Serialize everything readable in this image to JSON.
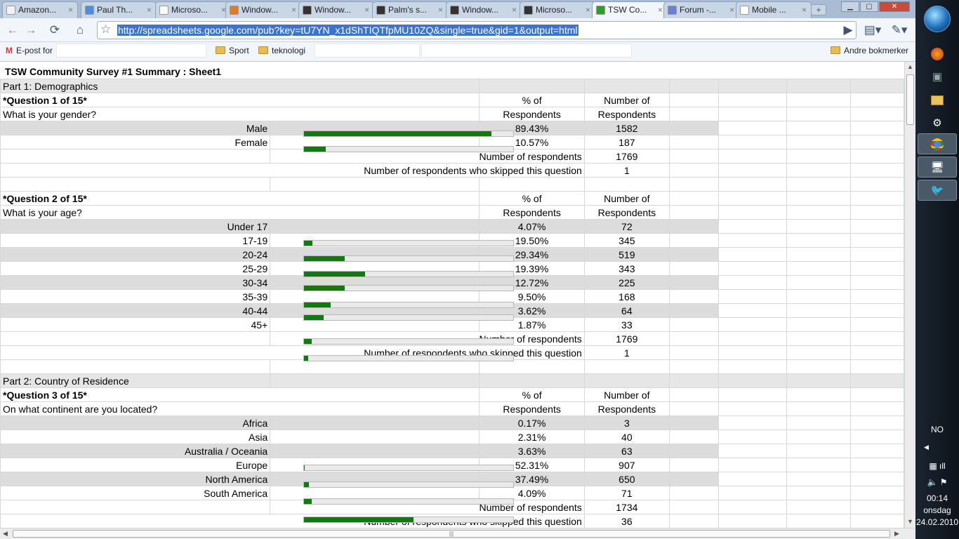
{
  "browser": {
    "tabs": [
      {
        "label": "Amazon...",
        "color": "#f3f3f3"
      },
      {
        "label": "Paul Th...",
        "color": "#4b8de0"
      },
      {
        "label": "Microso...",
        "color": "#ffffff"
      },
      {
        "label": "Window...",
        "color": "#e07b2a"
      },
      {
        "label": "Window...",
        "color": "#333333"
      },
      {
        "label": "Palm's s...",
        "color": "#333333"
      },
      {
        "label": "Window...",
        "color": "#333333"
      },
      {
        "label": "Microso...",
        "color": "#333333"
      },
      {
        "label": "TSW Co...",
        "color": "#2aa02a"
      },
      {
        "label": "Forum -...",
        "color": "#6b7fd6"
      },
      {
        "label": "Mobile ...",
        "color": "#ffffff"
      }
    ],
    "active_tab": 8,
    "close_glyph": "×",
    "newtab_glyph": "+",
    "url": "http://spreadsheets.google.com/pub?key=tU7YN_x1dShTIQTfpMU10ZQ&single=true&gid=1&output=html",
    "bookmarks": {
      "gmail": "E-post for",
      "sport": "Sport",
      "teknologi": "teknologi",
      "other": "Andre bokmerker"
    }
  },
  "sheet": {
    "title": "TSW Community Survey #1 Summary : Sheet1",
    "part1": "Part 1: Demographics",
    "part2": "Part 2: Country of Residence",
    "col_pct_1": "% of",
    "col_pct_2": "Respondents",
    "col_num_1": "Number of",
    "col_num_2": "Respondents",
    "num_respondents_label": "Number of respondents",
    "skipped_label": "Number of respondents who skipped this question",
    "q1": {
      "heading": "*Question 1 of 15*",
      "text": "What is your gender?",
      "rows": [
        {
          "label": "Male",
          "pct": "89.43%",
          "num": "1582"
        },
        {
          "label": "Female",
          "pct": "10.57%",
          "num": "187"
        }
      ],
      "respondents": "1769",
      "skipped": "1"
    },
    "q2": {
      "heading": "*Question 2 of 15*",
      "text": "What is your age?",
      "rows": [
        {
          "label": "Under 17",
          "pct": "4.07%",
          "num": "72"
        },
        {
          "label": "17-19",
          "pct": "19.50%",
          "num": "345"
        },
        {
          "label": "20-24",
          "pct": "29.34%",
          "num": "519"
        },
        {
          "label": "25-29",
          "pct": "19.39%",
          "num": "343"
        },
        {
          "label": "30-34",
          "pct": "12.72%",
          "num": "225"
        },
        {
          "label": "35-39",
          "pct": "9.50%",
          "num": "168"
        },
        {
          "label": "40-44",
          "pct": "3.62%",
          "num": "64"
        },
        {
          "label": "45+",
          "pct": "1.87%",
          "num": "33"
        }
      ],
      "respondents": "1769",
      "skipped": "1"
    },
    "q3": {
      "heading": "*Question 3 of 15*",
      "text": "On what continent are you located?",
      "rows": [
        {
          "label": "Africa",
          "pct": "0.17%",
          "num": "3"
        },
        {
          "label": "Asia",
          "pct": "2.31%",
          "num": "40"
        },
        {
          "label": "Australia / Oceania",
          "pct": "3.63%",
          "num": "63"
        },
        {
          "label": "Europe",
          "pct": "52.31%",
          "num": "907"
        },
        {
          "label": "North America",
          "pct": "37.49%",
          "num": "650"
        },
        {
          "label": "South America",
          "pct": "4.09%",
          "num": "71"
        }
      ],
      "respondents": "1734",
      "skipped": "36"
    },
    "bar_fill_fractions": [
      0.8943,
      0.1057,
      0.0407,
      0.195,
      0.2934,
      0.1939,
      0.1272,
      0.095,
      0.0362,
      0.0187,
      0.0017,
      0.0231,
      0.0363,
      0.5231
    ]
  },
  "taskbar": {
    "lang": "NO",
    "time": "00:14",
    "day": "onsdag",
    "date": "24.02.2010"
  }
}
